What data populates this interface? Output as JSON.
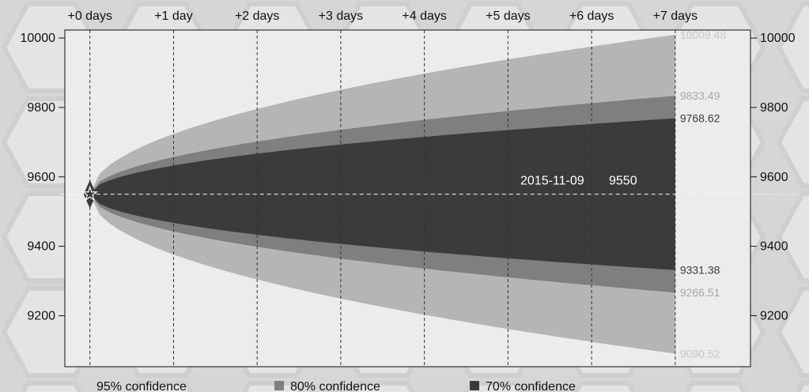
{
  "chart_data": {
    "type": "area",
    "title": "",
    "start": {
      "date": "2015-11-09",
      "value": 9550
    },
    "x_ticks": [
      "+0 days",
      "+1 day",
      "+2 days",
      "+3 days",
      "+4 days",
      "+5 days",
      "+6 days",
      "+7 days"
    ],
    "x_range": [
      -0.3,
      7.9
    ],
    "y_ticks": [
      9200,
      9400,
      9600,
      9800,
      10000
    ],
    "y_range": [
      9053,
      10023
    ],
    "series": [
      {
        "name": "95% confidence",
        "upper_end": 10009.48,
        "lower_end": 9090.52,
        "color": "#b5b5b5",
        "label_color": "#c8c8c8"
      },
      {
        "name": "80% confidence",
        "upper_end": 9833.49,
        "lower_end": 9266.51,
        "color": "#7f7f7f",
        "label_color": "#a6a6a6"
      },
      {
        "name": "70% confidence",
        "upper_end": 9768.62,
        "lower_end": 9331.38,
        "color": "#3b3b3b",
        "label_color": "#3b3b3b"
      }
    ],
    "end_labels": {
      "upper_95": "10009.48",
      "upper_80": "9833.49",
      "upper_70": "9768.62",
      "lower_70": "9331.38",
      "lower_80": "9266.51",
      "lower_95": "9090.52"
    },
    "center_label": {
      "date": "2015-11-09",
      "value": "9550"
    },
    "grid": "vertical-dashed",
    "legend_position": "bottom",
    "colors": {
      "band_95": "#b5b5b5",
      "band_80": "#7f7f7f",
      "band_70": "#3b3b3b",
      "plot_background": "#ececec",
      "marker": "#3b3b3b"
    }
  }
}
